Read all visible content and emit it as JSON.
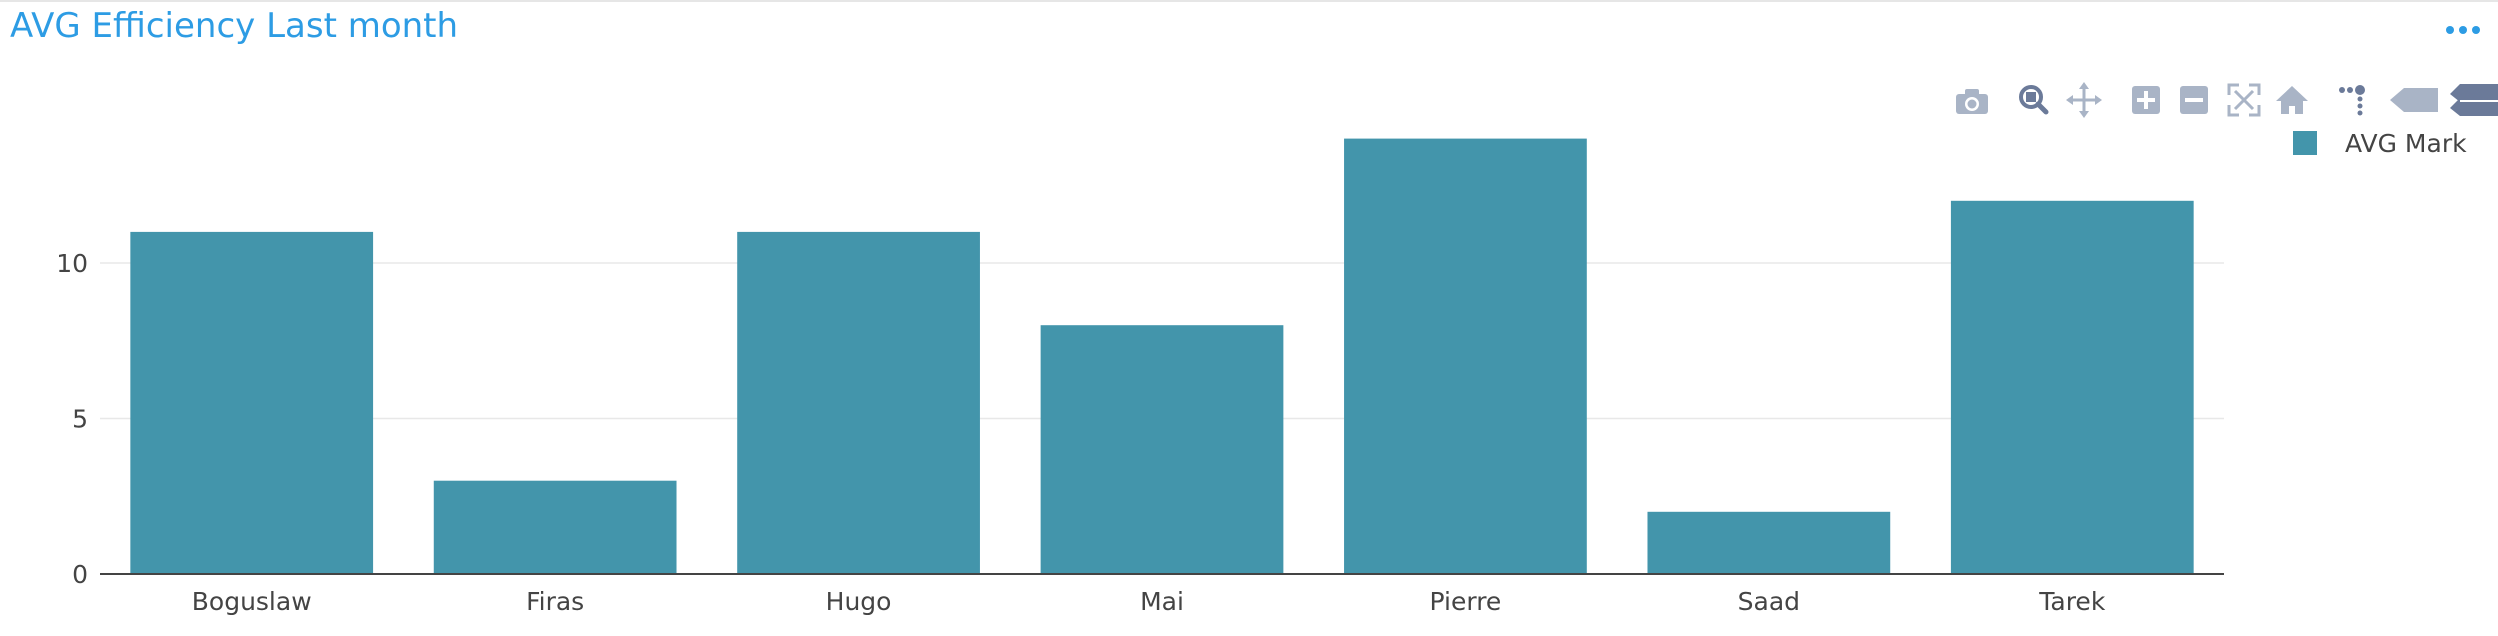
{
  "panel": {
    "title": "AVG Efficiency Last month",
    "menu_icon": "ellipsis-icon",
    "accent_color": "#2d9ce4"
  },
  "modebar": {
    "icons": [
      "camera-icon",
      "zoom-icon",
      "pan-icon",
      "zoom-in-icon",
      "zoom-out-icon",
      "autoscale-icon",
      "reset-axes-icon",
      "spike-lines-icon",
      "hover-closest-icon",
      "hover-compare-icon"
    ]
  },
  "chart_data": {
    "type": "bar",
    "categories": [
      "Boguslaw",
      "Firas",
      "Hugo",
      "Mai",
      "Pierre",
      "Saad",
      "Tarek"
    ],
    "series": [
      {
        "name": "AVG Mark",
        "values": [
          11,
          3,
          11,
          8,
          14,
          2,
          12
        ],
        "color": "#4395ab"
      }
    ],
    "ylim": [
      0,
      15
    ],
    "yticks": [
      0,
      5,
      10
    ],
    "grid": true,
    "legend_position": "top-right",
    "title": "",
    "xlabel": "",
    "ylabel": ""
  }
}
